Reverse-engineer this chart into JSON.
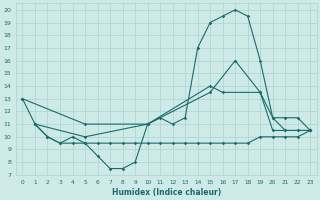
{
  "xlabel": "Humidex (Indice chaleur)",
  "bg_color": "#ceeae7",
  "grid_color": "#a8d4d0",
  "line_color": "#1a6b6b",
  "xlim": [
    -0.5,
    23.5
  ],
  "ylim": [
    7,
    20.5
  ],
  "xticks": [
    0,
    1,
    2,
    3,
    4,
    5,
    6,
    7,
    8,
    9,
    10,
    11,
    12,
    13,
    14,
    15,
    16,
    17,
    18,
    19,
    20,
    21,
    22,
    23
  ],
  "yticks": [
    7,
    8,
    9,
    10,
    11,
    12,
    13,
    14,
    15,
    16,
    17,
    18,
    19,
    20
  ],
  "line1_x": [
    0,
    1,
    2,
    3,
    4,
    5,
    6,
    7,
    8,
    9,
    10,
    11,
    12,
    13,
    14,
    15,
    16,
    17,
    18,
    19,
    20,
    21,
    22,
    23
  ],
  "line1_y": [
    13,
    11,
    10,
    9.5,
    9.5,
    9.5,
    8.5,
    7.5,
    7.5,
    8,
    11,
    11.5,
    11,
    11.5,
    17,
    19,
    19.5,
    20,
    19.5,
    16,
    11.5,
    10.5,
    10.5,
    10.5
  ],
  "line2_x": [
    1,
    2,
    3,
    4,
    5,
    6,
    7,
    8,
    9,
    10,
    11,
    12,
    13,
    14,
    15,
    16,
    17,
    18,
    19,
    20,
    21,
    22,
    23
  ],
  "line2_y": [
    11,
    10,
    9.5,
    10,
    9.5,
    9.5,
    9.5,
    9.5,
    9.5,
    9.5,
    9.5,
    9.5,
    9.5,
    9.5,
    9.5,
    9.5,
    9.5,
    9.5,
    10,
    10,
    10,
    10,
    10.5
  ],
  "line3_x": [
    0,
    5,
    10,
    15,
    17,
    19,
    20,
    21,
    22,
    23
  ],
  "line3_y": [
    13,
    11,
    11,
    13.5,
    16,
    13.5,
    11.5,
    11.5,
    11.5,
    10.5
  ],
  "line4_x": [
    1,
    5,
    10,
    15,
    16,
    19,
    20,
    21,
    22,
    23
  ],
  "line4_y": [
    11,
    10,
    11,
    14,
    13.5,
    13.5,
    10.5,
    10.5,
    10.5,
    10.5
  ]
}
